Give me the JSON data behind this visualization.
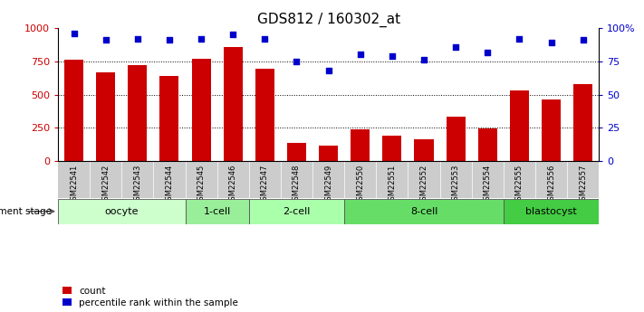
{
  "title": "GDS812 / 160302_at",
  "samples": [
    "GSM22541",
    "GSM22542",
    "GSM22543",
    "GSM22544",
    "GSM22545",
    "GSM22546",
    "GSM22547",
    "GSM22548",
    "GSM22549",
    "GSM22550",
    "GSM22551",
    "GSM22552",
    "GSM22553",
    "GSM22554",
    "GSM22555",
    "GSM22556",
    "GSM22557"
  ],
  "counts": [
    760,
    665,
    720,
    640,
    770,
    855,
    695,
    140,
    120,
    240,
    195,
    165,
    335,
    245,
    530,
    465,
    580
  ],
  "percentiles": [
    96,
    91,
    92,
    91,
    92,
    95,
    92,
    75,
    68,
    80,
    79,
    76,
    86,
    82,
    92,
    89,
    91
  ],
  "bar_color": "#cc0000",
  "dot_color": "#0000cc",
  "stages": [
    {
      "label": "oocyte",
      "start": 0,
      "end": 4,
      "color": "#ccffcc"
    },
    {
      "label": "1-cell",
      "start": 4,
      "end": 6,
      "color": "#99ee99"
    },
    {
      "label": "2-cell",
      "start": 6,
      "end": 9,
      "color": "#aaffaa"
    },
    {
      "label": "8-cell",
      "start": 9,
      "end": 14,
      "color": "#66dd66"
    },
    {
      "label": "blastocyst",
      "start": 14,
      "end": 17,
      "color": "#44cc44"
    }
  ],
  "ylim_left": [
    0,
    1000
  ],
  "ylim_right": [
    0,
    100
  ],
  "yticks_left": [
    0,
    250,
    500,
    750,
    1000
  ],
  "yticks_right": [
    0,
    25,
    50,
    75,
    100
  ],
  "ytick_labels_right": [
    "0",
    "25",
    "50",
    "75",
    "100%"
  ],
  "grid_values": [
    250,
    500,
    750
  ],
  "dev_stage_label": "development stage",
  "legend_count_label": "count",
  "legend_pct_label": "percentile rank within the sample",
  "left_axis_color": "#cc0000",
  "right_axis_color": "#0000cc",
  "tick_bg_color": "#cccccc",
  "title_fontsize": 11
}
